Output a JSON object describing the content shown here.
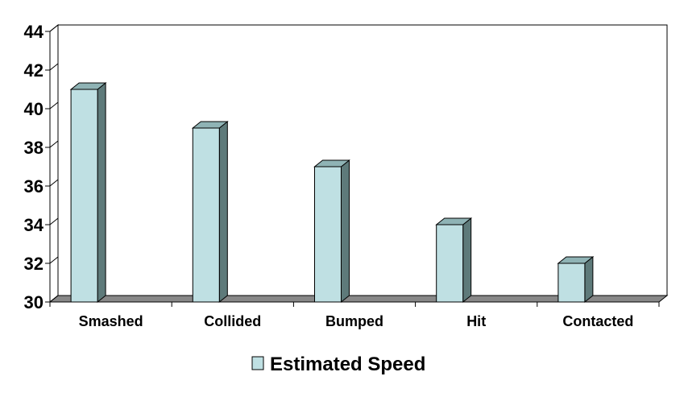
{
  "chart_data": {
    "type": "bar",
    "categories": [
      "Smashed",
      "Collided",
      "Bumped",
      "Hit",
      "Contacted"
    ],
    "series": [
      {
        "name": "Estimated Speed",
        "values": [
          41,
          39,
          37,
          34,
          32
        ]
      }
    ],
    "title": "",
    "xlabel": "",
    "ylabel": "",
    "ylim": [
      30,
      44
    ],
    "yticks": [
      "30",
      "32",
      "34",
      "36",
      "38",
      "40",
      "42",
      "44"
    ],
    "grid": false,
    "legend_position": "bottom",
    "style": "3d",
    "colors": {
      "bar_front": "#BFE0E3",
      "bar_side": "#5E7A7A",
      "bar_top": "#8FB3B5",
      "floor": "#888888",
      "outline": "#000000"
    }
  }
}
